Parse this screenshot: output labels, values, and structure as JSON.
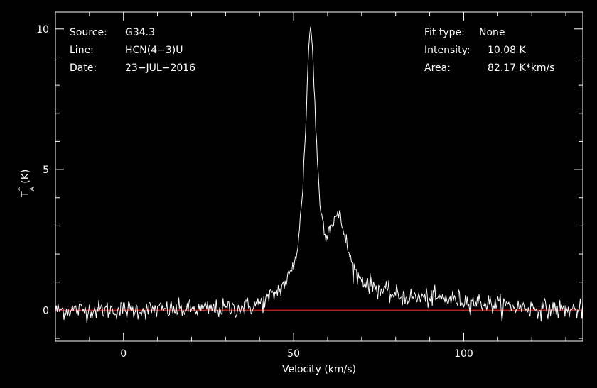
{
  "colors": {
    "background": "#000000",
    "axes": "#ffffff",
    "spectrum": "#ffffff",
    "baseline": "#ff0000"
  },
  "header_left": {
    "source_label": "Source:",
    "source_value": "G34.3",
    "line_label": "Line:",
    "line_value": "HCN(4−3)U",
    "date_label": "Date:",
    "date_value": "23−JUL−2016"
  },
  "header_right": {
    "fit_label": "Fit type:",
    "fit_value": "None",
    "intensity_label": "Intensity:",
    "intensity_value": "10.08 K",
    "area_label": "Area:",
    "area_value": "82.17 K*km/s"
  },
  "chart_data": {
    "type": "line",
    "xlabel": "Velocity (km/s)",
    "ylabel_main": "T",
    "ylabel_sup": "*",
    "ylabel_sub": "A",
    "ylabel_unit": "(K)",
    "xlim": [
      -20,
      135
    ],
    "ylim": [
      -1.1,
      10.6
    ],
    "xticks": [
      {
        "value": 0,
        "label": "0"
      },
      {
        "value": 50,
        "label": "50"
      },
      {
        "value": 100,
        "label": "100"
      }
    ],
    "yticks": [
      {
        "value": 0,
        "label": "0"
      },
      {
        "value": 5,
        "label": "5"
      },
      {
        "value": 10,
        "label": "10"
      }
    ],
    "x_minor_step": 10,
    "y_minor_step": 1,
    "baseline_y": 0,
    "grid": false,
    "legend": "none",
    "series": [
      {
        "x_start": -20,
        "x_end": 135,
        "x_step": 0.25,
        "noise_rms": 0.17,
        "components": [
          {
            "center": 55.0,
            "amplitude": 9.7,
            "width": 2.0,
            "shape": "lorentzian"
          },
          {
            "center": 63.0,
            "amplitude": 2.0,
            "width": 2.4,
            "shape": "gaussian"
          },
          {
            "center": 67.0,
            "amplitude": 0.8,
            "width": 7.0,
            "shape": "gaussian"
          },
          {
            "center": 90.0,
            "amplitude": 0.4,
            "width": 16.0,
            "shape": "gaussian"
          },
          {
            "center": 47.0,
            "amplitude": 0.3,
            "width": 4.0,
            "shape": "gaussian"
          }
        ],
        "peak_value": 10.08
      }
    ]
  }
}
